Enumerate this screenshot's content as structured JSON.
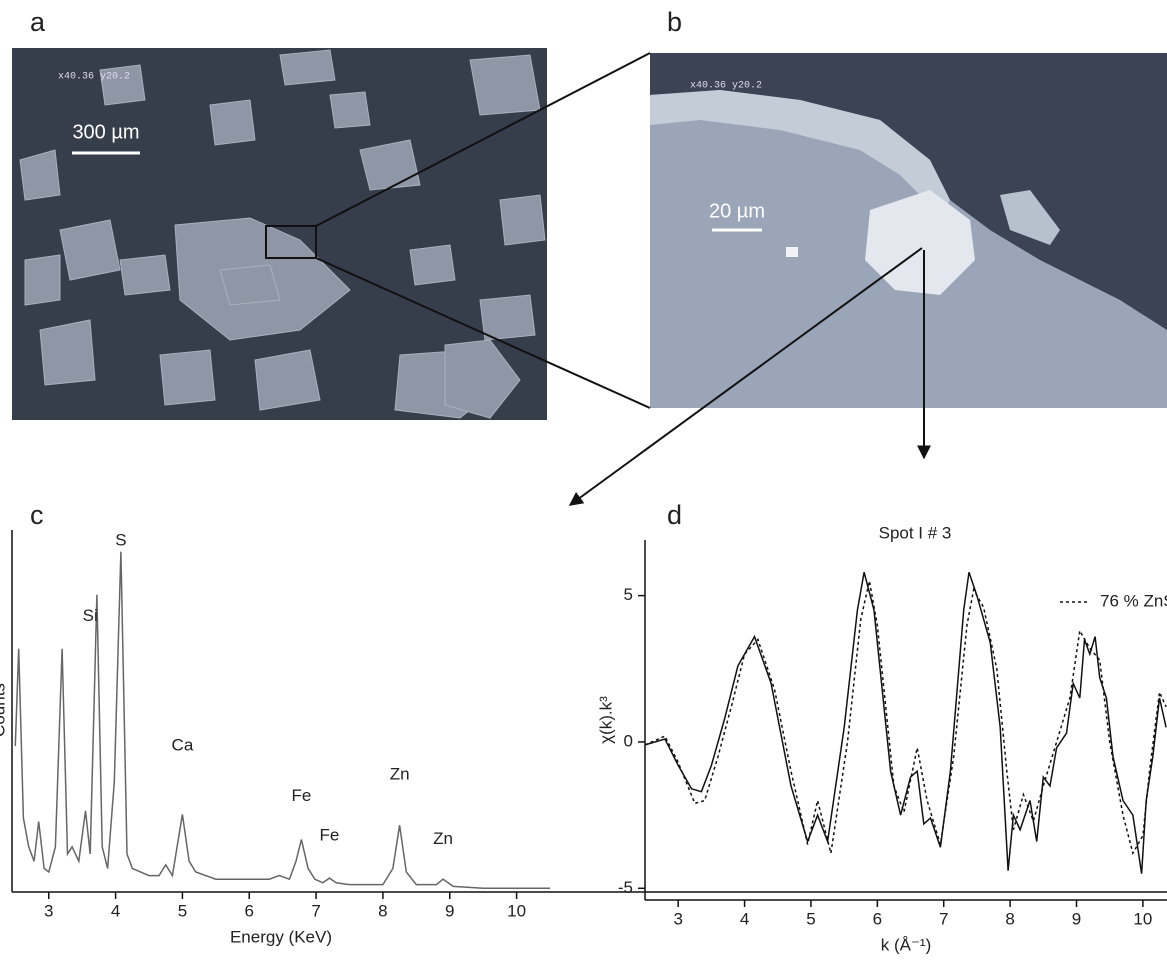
{
  "figure": {
    "panels": [
      {
        "letter": "a",
        "scale_bar": "300 µm",
        "stamp": "x40.36 y20.2"
      },
      {
        "letter": "b",
        "scale_bar": "20 µm",
        "stamp": "x40.36 y20.2"
      },
      {
        "letter": "c"
      },
      {
        "letter": "d"
      }
    ]
  },
  "chart_data": [
    {
      "type": "line",
      "xlabel": "Energy (KeV)",
      "ylabel": "Counts",
      "xlim": [
        2.45,
        10.5
      ],
      "ylim": [
        0,
        100
      ],
      "xticks": [
        3,
        4,
        5,
        6,
        7,
        8,
        9,
        10
      ],
      "series": [
        {
          "color": "#666666",
          "x": [
            2.5,
            2.55,
            2.62,
            2.7,
            2.78,
            2.85,
            2.93,
            3.0,
            3.1,
            3.2,
            3.28,
            3.35,
            3.45,
            3.55,
            3.62,
            3.72,
            3.8,
            3.88,
            3.98,
            4.08,
            4.17,
            4.25,
            4.5,
            4.65,
            4.75,
            4.85,
            4.92,
            5.0,
            5.1,
            5.2,
            5.5,
            6.0,
            6.3,
            6.45,
            6.6,
            6.7,
            6.78,
            6.88,
            6.98,
            7.1,
            7.2,
            7.3,
            7.5,
            8.0,
            8.15,
            8.25,
            8.35,
            8.5,
            8.8,
            8.9,
            9.05,
            9.5,
            10.5
          ],
          "values": [
            40,
            67,
            20,
            12,
            8,
            19,
            6,
            5,
            12,
            67,
            10,
            12,
            8,
            22,
            10,
            82,
            12,
            6,
            30,
            94,
            10,
            6,
            4,
            4,
            7,
            4,
            12,
            21,
            8,
            5,
            3,
            3,
            3,
            4,
            3,
            8,
            14,
            6,
            3,
            2,
            3.3,
            2,
            1.5,
            1.5,
            6,
            18,
            5,
            1.5,
            1.5,
            3,
            1,
            0.5,
            0.5
          ]
        }
      ],
      "annotations": [
        {
          "text": "Si",
          "x": 3.62,
          "y": 76
        },
        {
          "text": "S",
          "x": 4.08,
          "y": 97
        },
        {
          "text": "Ca",
          "x": 5.0,
          "y": 40
        },
        {
          "text": "Fe",
          "x": 6.78,
          "y": 26
        },
        {
          "text": "Fe",
          "x": 7.2,
          "y": 15
        },
        {
          "text": "Zn",
          "x": 8.25,
          "y": 32
        },
        {
          "text": "Zn",
          "x": 8.9,
          "y": 14
        }
      ]
    },
    {
      "type": "line",
      "title": "Spot I # 3",
      "xlabel": "k (Å⁻¹)",
      "ylabel": "χ(k).k³",
      "xlim": [
        2.5,
        10.8
      ],
      "ylim": [
        -5.4,
        6.9
      ],
      "xticks": [
        3,
        4,
        5,
        6,
        7,
        8,
        9,
        10
      ],
      "yticks": [
        -5,
        0,
        5
      ],
      "legend": "upper right",
      "series": [
        {
          "color": "#111111",
          "dash": "solid",
          "x": [
            2.5,
            2.8,
            3.0,
            3.2,
            3.35,
            3.5,
            3.7,
            3.9,
            4.15,
            4.4,
            4.7,
            4.95,
            5.1,
            5.25,
            5.5,
            5.7,
            5.8,
            5.95,
            6.2,
            6.35,
            6.5,
            6.6,
            6.7,
            6.8,
            6.95,
            7.1,
            7.3,
            7.38,
            7.5,
            7.7,
            7.85,
            7.97,
            8.05,
            8.15,
            8.3,
            8.4,
            8.5,
            8.6,
            8.7,
            8.85,
            8.95,
            9.05,
            9.12,
            9.2,
            9.28,
            9.35,
            9.45,
            9.55,
            9.7,
            9.85,
            9.98,
            10.05,
            10.15,
            10.25,
            10.35
          ],
          "values": [
            -0.1,
            0.1,
            -0.8,
            -1.6,
            -1.7,
            -0.8,
            0.8,
            2.6,
            3.6,
            2.0,
            -1.5,
            -3.4,
            -2.5,
            -3.4,
            0.5,
            4.5,
            5.8,
            4.5,
            -1.0,
            -2.5,
            -1.2,
            -1.0,
            -2.8,
            -2.6,
            -3.6,
            -1.0,
            4.5,
            5.8,
            5.0,
            3.4,
            0.5,
            -4.4,
            -2.5,
            -3.0,
            -2.0,
            -3.4,
            -1.2,
            -1.5,
            -0.2,
            0.3,
            2.0,
            1.5,
            3.5,
            3.0,
            3.6,
            2.2,
            1.5,
            -0.5,
            -2.0,
            -2.5,
            -4.5,
            -2.0,
            -0.5,
            1.5,
            0.5
          ]
        },
        {
          "name": "76 % ZnS",
          "color": "#111111",
          "dash": "dotted",
          "x": [
            2.5,
            2.8,
            3.0,
            3.25,
            3.4,
            3.6,
            3.8,
            4.0,
            4.2,
            4.45,
            4.7,
            4.95,
            5.1,
            5.3,
            5.55,
            5.75,
            5.88,
            6.0,
            6.25,
            6.4,
            6.6,
            6.75,
            6.95,
            7.15,
            7.35,
            7.45,
            7.6,
            7.8,
            7.95,
            8.05,
            8.2,
            8.35,
            8.5,
            8.7,
            8.9,
            9.05,
            9.2,
            9.35,
            9.5,
            9.7,
            9.85,
            10.0,
            10.1,
            10.25,
            10.35
          ],
          "values": [
            -0.1,
            0.2,
            -0.7,
            -2.1,
            -2.0,
            -0.5,
            1.2,
            3.0,
            3.5,
            1.8,
            -1.0,
            -3.5,
            -2.0,
            -3.8,
            0.0,
            4.2,
            5.5,
            4.0,
            -1.5,
            -2.4,
            -0.2,
            -2.0,
            -3.5,
            -0.5,
            4.0,
            5.2,
            4.6,
            2.5,
            -1.0,
            -3.0,
            -1.8,
            -2.7,
            -1.5,
            0.0,
            1.5,
            3.8,
            3.2,
            2.8,
            0.0,
            -2.5,
            -3.8,
            -3.2,
            -1.0,
            1.7,
            1.2
          ]
        }
      ]
    }
  ]
}
